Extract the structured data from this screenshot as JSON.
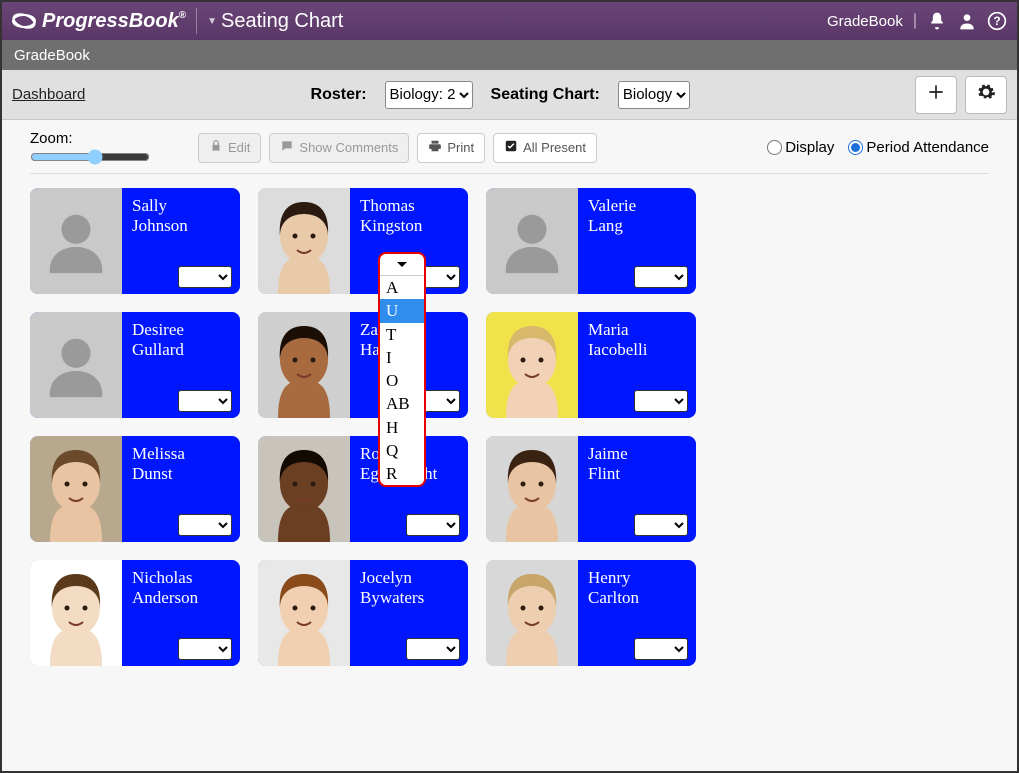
{
  "brand": {
    "name": "ProgressBook",
    "trademark": "®"
  },
  "page_title": "Seating Chart",
  "subbar_label": "GradeBook",
  "topright": {
    "module": "GradeBook"
  },
  "breadcrumb": "Dashboard",
  "roster": {
    "label": "Roster:",
    "selected": "Biology: 2"
  },
  "chart": {
    "label": "Seating Chart:",
    "selected": "Biology"
  },
  "controls": {
    "zoom_label": "Zoom:",
    "edit": "Edit",
    "show_comments": "Show Comments",
    "print": "Print",
    "all_present": "All Present",
    "display": "Display",
    "period_attendance": "Period Attendance",
    "view_mode": "period"
  },
  "attendance_options": [
    "A",
    "U",
    "T",
    "I",
    "O",
    "AB",
    "H",
    "Q",
    "R"
  ],
  "attendance_highlight": "U",
  "students": [
    {
      "first": "Sally",
      "last": "Johnson",
      "has_photo": false
    },
    {
      "first": "Thomas",
      "last": "Kingston",
      "has_photo": true,
      "skin": "#e8c9a8",
      "hair": "#2b1a10",
      "bg": "#dcdcdc",
      "dropdown_open": true
    },
    {
      "first": "Valerie",
      "last": "Lang",
      "has_photo": false
    },
    {
      "first": "Desiree",
      "last": "Gullard",
      "has_photo": false
    },
    {
      "first": "Zachary",
      "last": "Hart",
      "has_photo": true,
      "skin": "#a86b3f",
      "hair": "#1a0e05",
      "bg": "#cfcfcf"
    },
    {
      "first": "Maria",
      "last": "Iacobelli",
      "has_photo": true,
      "skin": "#f2d2b6",
      "hair": "#d8b86a",
      "bg": "#f0e24a"
    },
    {
      "first": "Melissa",
      "last": "Dunst",
      "has_photo": true,
      "skin": "#e9c4a3",
      "hair": "#6a4a2a",
      "bg": "#b8a98e"
    },
    {
      "first": "Ronald",
      "last": "Eggebrecht",
      "has_photo": true,
      "skin": "#6b3f22",
      "hair": "#140a04",
      "bg": "#c9c4bb"
    },
    {
      "first": "Jaime",
      "last": "Flint",
      "has_photo": true,
      "skin": "#e8c4a3",
      "hair": "#3a2212",
      "bg": "#d6d6d6"
    },
    {
      "first": "Nicholas",
      "last": "Anderson",
      "has_photo": true,
      "skin": "#f3dbc4",
      "hair": "#5a3a1a",
      "bg": "#ffffff"
    },
    {
      "first": "Jocelyn",
      "last": "Bywaters",
      "has_photo": true,
      "skin": "#f0d0b0",
      "hair": "#8a4a1a",
      "bg": "#e8e8e8"
    },
    {
      "first": "Henry",
      "last": "Carlton",
      "has_photo": true,
      "skin": "#edceb0",
      "hair": "#c7a56b",
      "bg": "#d8d8d8"
    }
  ],
  "colors": {
    "card_bg": "#0016ff",
    "topbar": "#5d3a6a"
  }
}
